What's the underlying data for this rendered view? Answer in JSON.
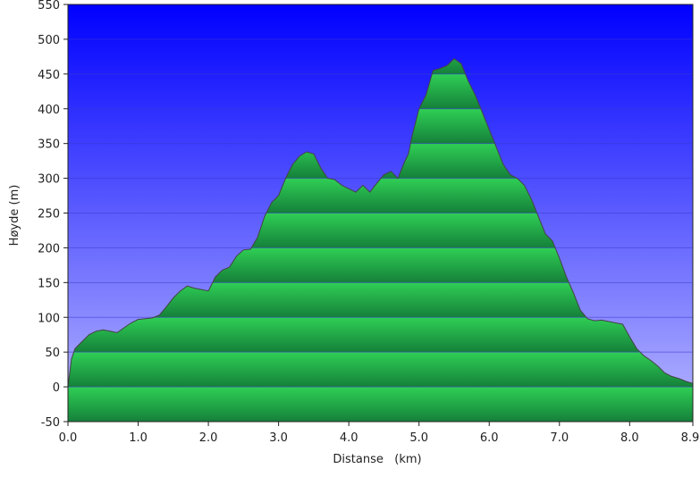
{
  "chart_data": {
    "type": "area",
    "title": "",
    "xlabel": "Distanse   (km)",
    "ylabel": "Høyde (m)",
    "xlim": [
      0.0,
      8.9
    ],
    "ylim": [
      -50,
      550
    ],
    "x_ticks": [
      "0.0",
      "1.0",
      "2.0",
      "3.0",
      "4.0",
      "5.0",
      "6.0",
      "7.0",
      "8.0",
      "8.9"
    ],
    "x_tick_values": [
      0,
      1,
      2,
      3,
      4,
      5,
      6,
      7,
      8,
      8.9
    ],
    "y_ticks": [
      "550",
      "500",
      "450",
      "400",
      "350",
      "300",
      "250",
      "200",
      "150",
      "100",
      "50",
      "0",
      "-50"
    ],
    "y_tick_values": [
      550,
      500,
      450,
      400,
      350,
      300,
      250,
      200,
      150,
      100,
      50,
      0,
      -50
    ],
    "grid": true,
    "colors": {
      "background_top": "#0000ff",
      "background_bottom": "#b8b8ff",
      "fill_light": "#2fcf55",
      "fill_dark": "#15803a",
      "outline": "#444444",
      "grid": "#3a3ad0"
    },
    "series": [
      {
        "x": [
          0.0,
          0.05,
          0.1,
          0.15,
          0.2,
          0.3,
          0.4,
          0.5,
          0.6,
          0.7,
          0.8,
          0.9,
          1.0,
          1.1,
          1.2,
          1.3,
          1.4,
          1.5,
          1.6,
          1.7,
          1.8,
          1.9,
          2.0,
          2.1,
          2.2,
          2.3,
          2.4,
          2.5,
          2.6,
          2.7,
          2.8,
          2.9,
          3.0,
          3.1,
          3.2,
          3.3,
          3.4,
          3.5,
          3.6,
          3.7,
          3.8,
          3.9,
          4.0,
          4.1,
          4.2,
          4.3,
          4.4,
          4.5,
          4.6,
          4.7,
          4.8,
          4.85,
          4.9,
          5.0,
          5.1,
          5.2,
          5.3,
          5.4,
          5.5,
          5.6,
          5.7,
          5.8,
          5.9,
          6.0,
          6.1,
          6.2,
          6.3,
          6.4,
          6.5,
          6.6,
          6.7,
          6.8,
          6.9,
          7.0,
          7.1,
          7.2,
          7.3,
          7.4,
          7.5,
          7.6,
          7.7,
          7.8,
          7.9,
          8.0,
          8.1,
          8.2,
          8.3,
          8.4,
          8.5,
          8.6,
          8.7,
          8.8,
          8.9
        ],
        "values": [
          0,
          40,
          55,
          60,
          65,
          75,
          80,
          82,
          80,
          78,
          85,
          92,
          97,
          98,
          99,
          103,
          115,
          128,
          138,
          145,
          142,
          140,
          138,
          158,
          168,
          172,
          188,
          197,
          198,
          215,
          245,
          265,
          275,
          300,
          320,
          332,
          338,
          335,
          315,
          300,
          298,
          290,
          285,
          280,
          290,
          280,
          293,
          305,
          310,
          300,
          325,
          335,
          360,
          400,
          420,
          455,
          458,
          462,
          472,
          465,
          440,
          420,
          395,
          370,
          345,
          320,
          305,
          300,
          290,
          270,
          245,
          220,
          210,
          185,
          158,
          135,
          110,
          98,
          95,
          96,
          94,
          92,
          90,
          72,
          55,
          45,
          38,
          30,
          20,
          15,
          12,
          8,
          5
        ]
      }
    ]
  }
}
